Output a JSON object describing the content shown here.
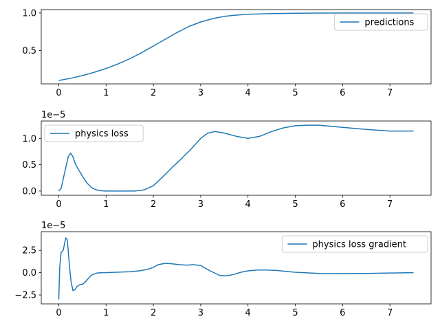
{
  "colors": {
    "series": "#1f77b4",
    "axes": "#000000",
    "legend_border": "#cccccc"
  },
  "chart_data": [
    {
      "type": "line",
      "name": "predictions-panel",
      "xlim": [
        -0.37,
        7.87
      ],
      "ylim": [
        0.055,
        1.045
      ],
      "xticks": [
        0,
        1,
        2,
        3,
        4,
        5,
        6,
        7
      ],
      "yticks": [
        0.5,
        1.0
      ],
      "ytick_labels": [
        "0.5",
        "1.0"
      ],
      "offset_label": "",
      "legend": {
        "position": "upper right"
      },
      "series": [
        {
          "name": "predictions",
          "x": [
            0,
            0.25,
            0.5,
            0.75,
            1.0,
            1.25,
            1.5,
            1.75,
            2.0,
            2.25,
            2.5,
            2.75,
            3.0,
            3.25,
            3.5,
            3.75,
            4.0,
            4.5,
            5.0,
            5.5,
            6.0,
            6.5,
            7.0,
            7.5
          ],
          "y": [
            0.1,
            0.13,
            0.165,
            0.21,
            0.26,
            0.32,
            0.39,
            0.47,
            0.56,
            0.65,
            0.74,
            0.82,
            0.88,
            0.925,
            0.955,
            0.972,
            0.983,
            0.993,
            0.997,
            0.999,
            1.0,
            1.0,
            1.0,
            1.0
          ]
        }
      ]
    },
    {
      "type": "line",
      "name": "physics-loss-panel",
      "xlim": [
        -0.37,
        7.87
      ],
      "ylim": [
        -0.08,
        1.33
      ],
      "xticks": [
        0,
        1,
        2,
        3,
        4,
        5,
        6,
        7
      ],
      "yticks": [
        0.0,
        0.5,
        1.0
      ],
      "ytick_labels": [
        "0.0",
        "0.5",
        "1.0"
      ],
      "offset_label": "1e−5",
      "legend": {
        "position": "upper left"
      },
      "series": [
        {
          "name": "physics loss",
          "x": [
            0,
            0.05,
            0.1,
            0.15,
            0.2,
            0.25,
            0.3,
            0.35,
            0.4,
            0.45,
            0.5,
            0.6,
            0.7,
            0.8,
            0.9,
            1.0,
            1.2,
            1.4,
            1.6,
            1.8,
            2.0,
            2.2,
            2.4,
            2.6,
            2.8,
            3.0,
            3.15,
            3.3,
            3.5,
            3.75,
            4.0,
            4.25,
            4.5,
            4.75,
            5.0,
            5.25,
            5.5,
            6.0,
            6.5,
            7.0,
            7.5
          ],
          "y": [
            0.0,
            0.05,
            0.25,
            0.45,
            0.65,
            0.72,
            0.65,
            0.52,
            0.43,
            0.36,
            0.28,
            0.15,
            0.06,
            0.02,
            0.005,
            0.0,
            0.0,
            0.0,
            0.0,
            0.02,
            0.1,
            0.27,
            0.45,
            0.62,
            0.8,
            1.0,
            1.1,
            1.13,
            1.1,
            1.04,
            1.0,
            1.04,
            1.13,
            1.2,
            1.24,
            1.25,
            1.25,
            1.21,
            1.17,
            1.14,
            1.14
          ]
        }
      ]
    },
    {
      "type": "line",
      "name": "physics-loss-gradient-panel",
      "xlim": [
        -0.37,
        7.87
      ],
      "ylim": [
        -3.5,
        4.6
      ],
      "xticks": [
        0,
        1,
        2,
        3,
        4,
        5,
        6,
        7
      ],
      "yticks": [
        -2.5,
        0.0,
        2.5
      ],
      "ytick_labels": [
        "−2.5",
        "0.0",
        "2.5"
      ],
      "offset_label": "1e−5",
      "legend": {
        "position": "upper right"
      },
      "series": [
        {
          "name": "physics loss gradient",
          "x": [
            0,
            0.02,
            0.05,
            0.08,
            0.1,
            0.12,
            0.15,
            0.18,
            0.2,
            0.23,
            0.26,
            0.3,
            0.34,
            0.38,
            0.42,
            0.46,
            0.5,
            0.55,
            0.6,
            0.65,
            0.7,
            0.8,
            0.9,
            1.0,
            1.2,
            1.5,
            1.7,
            1.9,
            2.0,
            2.1,
            2.25,
            2.4,
            2.55,
            2.7,
            2.85,
            3.0,
            3.2,
            3.4,
            3.55,
            3.7,
            3.85,
            4.0,
            4.2,
            4.4,
            4.6,
            4.8,
            5.0,
            5.25,
            5.5,
            6.0,
            6.5,
            7.0,
            7.5
          ],
          "y": [
            -3.0,
            0.5,
            2.3,
            2.4,
            2.6,
            3.2,
            3.9,
            3.7,
            2.5,
            0.5,
            -1.0,
            -2.0,
            -1.9,
            -1.6,
            -1.4,
            -1.35,
            -1.3,
            -1.1,
            -0.8,
            -0.5,
            -0.25,
            -0.05,
            0.0,
            0.0,
            0.05,
            0.1,
            0.2,
            0.4,
            0.6,
            0.9,
            1.05,
            1.0,
            0.9,
            0.85,
            0.9,
            0.8,
            0.2,
            -0.3,
            -0.35,
            -0.2,
            0.05,
            0.2,
            0.3,
            0.3,
            0.25,
            0.15,
            0.05,
            -0.02,
            -0.08,
            -0.1,
            -0.08,
            -0.04,
            0.0
          ]
        }
      ]
    }
  ]
}
